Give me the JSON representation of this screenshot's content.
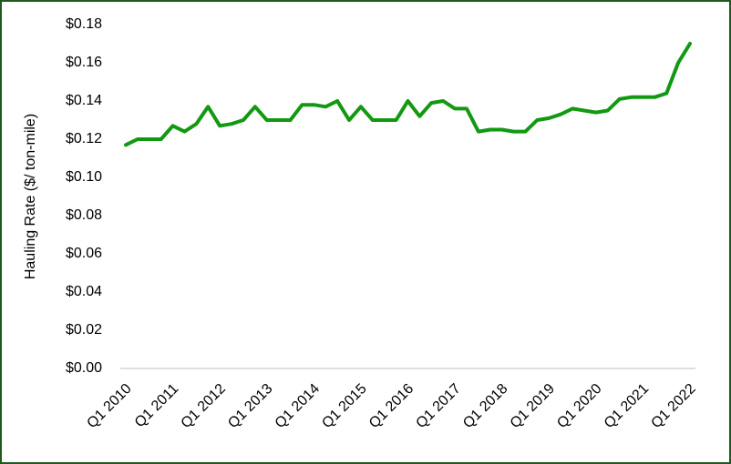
{
  "chart_data": {
    "type": "line",
    "y_label": "Hauling Rate ($/ ton-mile)",
    "categories": [
      "Q1 2010",
      null,
      null,
      null,
      "Q1 2011",
      null,
      null,
      null,
      "Q1 2012",
      null,
      null,
      null,
      "Q1 2013",
      null,
      null,
      null,
      "Q1 2014",
      null,
      null,
      null,
      "Q1 2015",
      null,
      null,
      null,
      "Q1 2016",
      null,
      null,
      null,
      "Q1 2017",
      null,
      null,
      null,
      "Q1 2018",
      null,
      null,
      null,
      "Q1 2019",
      null,
      null,
      null,
      "Q1 2020",
      null,
      null,
      null,
      "Q1 2021",
      null,
      null,
      null,
      "Q1 2022"
    ],
    "values": [
      0.117,
      0.12,
      0.12,
      0.12,
      0.127,
      0.124,
      0.128,
      0.137,
      0.127,
      0.128,
      0.13,
      0.137,
      0.13,
      0.13,
      0.13,
      0.138,
      0.138,
      0.137,
      0.14,
      0.13,
      0.137,
      0.13,
      0.13,
      0.13,
      0.14,
      0.132,
      0.139,
      0.14,
      0.136,
      0.136,
      0.124,
      0.125,
      0.125,
      0.124,
      0.124,
      0.13,
      0.131,
      0.133,
      0.136,
      0.135,
      0.134,
      0.135,
      0.141,
      0.142,
      0.142,
      0.142,
      0.144,
      0.16,
      0.17
    ],
    "color": "#119911",
    "ylim": [
      0,
      0.18
    ],
    "yticks": [
      {
        "value": 0,
        "label": "$0.00"
      },
      {
        "value": 0.02,
        "label": "$0.02"
      },
      {
        "value": 0.04,
        "label": "$0.04"
      },
      {
        "value": 0.06,
        "label": "$0.06"
      },
      {
        "value": 0.08,
        "label": "$0.08"
      },
      {
        "value": 0.1,
        "label": "$0.10"
      },
      {
        "value": 0.12,
        "label": "$0.12"
      },
      {
        "value": 0.14,
        "label": "$0.14"
      },
      {
        "value": 0.16,
        "label": "$0.16"
      },
      {
        "value": 0.18,
        "label": "$0.18"
      }
    ],
    "grid": false
  }
}
